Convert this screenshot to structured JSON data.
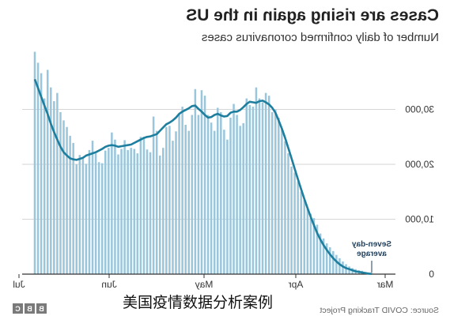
{
  "chart_data": {
    "type": "bar",
    "title": "Cases are rising again in the US",
    "subtitle": "Number of daily confirmed coronavirus cases",
    "orientation": "mirrored",
    "yticks": [
      "0",
      "10,000",
      "20,000",
      "30,000"
    ],
    "ytick_values": [
      0,
      10000,
      20000,
      30000
    ],
    "ylim": [
      0,
      40000
    ],
    "xticks": [
      "Mar",
      "Apr",
      "May",
      "Jun",
      "Jul"
    ],
    "grid": true,
    "bar_color": "#9ac6dc",
    "line_color": "#1d7e9e",
    "series": [
      {
        "name": "Daily cases",
        "kind": "bar",
        "values": [
          200,
          300,
          400,
          600,
          700,
          900,
          1100,
          1400,
          1800,
          2300,
          2900,
          3500,
          4200,
          4900,
          5600,
          6500,
          7400,
          9000,
          10200,
          11000,
          12100,
          13500,
          15000,
          16800,
          18500,
          19600,
          22000,
          24200,
          26500,
          28500,
          30000,
          29500,
          32500,
          33000,
          31300,
          32000,
          34000,
          30500,
          30800,
          32000,
          27500,
          27000,
          29000,
          31000,
          28500,
          24500,
          26300,
          29500,
          30300,
          26100,
          27600,
          29000,
          32500,
          33500,
          29000,
          33700,
          29000,
          26100,
          27200,
          30500,
          29000,
          26000,
          24300,
          27000,
          26800,
          23000,
          21600,
          26100,
          28700,
          22200,
          22700,
          25000,
          25000,
          22000,
          22800,
          23000,
          22600,
          24400,
          22800,
          21800,
          24500,
          25800,
          23000,
          22500,
          20200,
          20400,
          22000,
          24300,
          22600,
          20100,
          21300,
          21700,
          20000,
          23900,
          25200,
          26800,
          28000,
          29500,
          33000,
          31500,
          34000,
          37200,
          32000,
          36600,
          38500,
          40500
        ]
      },
      {
        "name": "Seven-day average",
        "kind": "line",
        "values": [
          50,
          100,
          200,
          300,
          400,
          500,
          700,
          900,
          1100,
          1400,
          1800,
          2300,
          2900,
          3600,
          4400,
          5300,
          6300,
          7500,
          8900,
          10400,
          12000,
          13700,
          15500,
          17300,
          19200,
          21100,
          23000,
          24800,
          26500,
          28000,
          29400,
          30300,
          30900,
          31300,
          31600,
          31500,
          31200,
          31300,
          31400,
          31000,
          30400,
          29900,
          29600,
          29600,
          29400,
          28800,
          28700,
          28900,
          29200,
          29000,
          28600,
          28500,
          29000,
          29600,
          30100,
          30700,
          30600,
          30200,
          29900,
          29600,
          29200,
          28500,
          28000,
          27600,
          27300,
          26700,
          26100,
          25500,
          25300,
          25100,
          25000,
          24800,
          24500,
          24200,
          23900,
          23600,
          23500,
          23400,
          23300,
          23200,
          23400,
          23500,
          23400,
          23200,
          22800,
          22500,
          22200,
          22000,
          21800,
          21600,
          21200,
          21000,
          20800,
          20900,
          21100,
          21600,
          22200,
          23200,
          24500,
          25900,
          27400,
          29200,
          30700,
          32300,
          33900,
          35500
        ]
      }
    ]
  },
  "annotation": {
    "line1": "Seven-day",
    "line2": "average"
  },
  "footer": {
    "source": "Source: COVID Tracking Project",
    "brand_letters": [
      "B",
      "B",
      "C"
    ]
  },
  "watermark": {
    "text": "美国疫情数据分析案例"
  }
}
